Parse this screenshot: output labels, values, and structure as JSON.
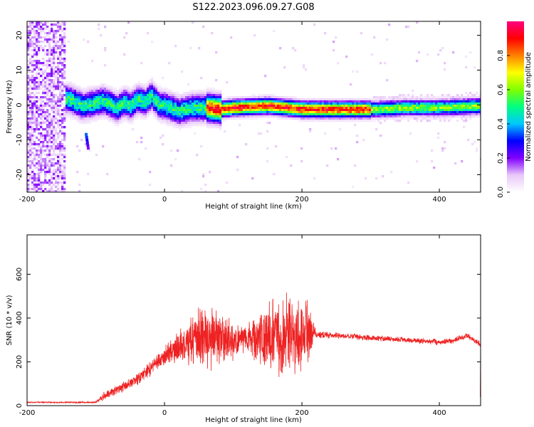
{
  "title": "S122.2023.096.09.27.G08",
  "chart_data": [
    {
      "type": "heatmap",
      "xlabel": "Height of straight line (km)",
      "ylabel": "Frequency (Hz)",
      "xlim": [
        -200,
        460
      ],
      "ylim": [
        -25,
        24
      ],
      "xticks": [
        -200,
        0,
        200,
        400
      ],
      "yticks": [
        -20,
        -10,
        0,
        10,
        20
      ],
      "colorbar": {
        "label": "Normalized spectral amplitude",
        "range": [
          0,
          1
        ],
        "ticks": [
          0.0,
          0.2,
          0.4,
          0.6,
          0.8
        ],
        "colors": [
          "#ffffff",
          "#e8c8f8",
          "#8000ff",
          "#0000ff",
          "#00c8ff",
          "#00ff80",
          "#80ff00",
          "#ffff00",
          "#ff8000",
          "#ff0000",
          "#ff0080"
        ]
      },
      "ridge": {
        "x": [
          -140,
          -130,
          -120,
          -110,
          -100,
          -90,
          -80,
          -70,
          -60,
          -50,
          -40,
          -30,
          -20,
          -10,
          0,
          20,
          40,
          60,
          80,
          100,
          150,
          200,
          250,
          300,
          350,
          400,
          460
        ],
        "y": [
          2,
          1,
          0,
          0.5,
          1,
          1.5,
          0.5,
          -0.5,
          1,
          0,
          2,
          1,
          3,
          0.5,
          0,
          -1.5,
          -0.5,
          -0.5,
          -1,
          -0.5,
          0,
          -1,
          -1,
          -1,
          -0.5,
          -0.5,
          0
        ]
      },
      "noise_region_x": [
        -200,
        -145
      ],
      "ridge_start_x": -145
    },
    {
      "type": "line",
      "xlabel": "Height of straight line (km)",
      "ylabel": "SNR (10 * v/v)",
      "xlim": [
        -200,
        460
      ],
      "ylim": [
        0,
        780
      ],
      "xticks": [
        -200,
        0,
        200,
        400
      ],
      "yticks": [
        0,
        200,
        400,
        600
      ],
      "color": "#ee2222",
      "envelope": {
        "x": [
          -200,
          -100,
          -90,
          -70,
          -50,
          -30,
          -10,
          10,
          30,
          50,
          70,
          90,
          110,
          130,
          150,
          170,
          190,
          210,
          220,
          250,
          300,
          350,
          400,
          420,
          430,
          440,
          450,
          460
        ],
        "mean": [
          15,
          15,
          40,
          70,
          100,
          140,
          200,
          250,
          280,
          310,
          320,
          310,
          300,
          310,
          320,
          320,
          330,
          330,
          325,
          320,
          310,
          300,
          290,
          295,
          310,
          320,
          300,
          280
        ],
        "amp": [
          3,
          4,
          20,
          25,
          30,
          35,
          40,
          60,
          110,
          160,
          180,
          150,
          60,
          110,
          180,
          250,
          220,
          170,
          20,
          15,
          15,
          15,
          15,
          15,
          15,
          15,
          15,
          15
        ]
      }
    }
  ]
}
